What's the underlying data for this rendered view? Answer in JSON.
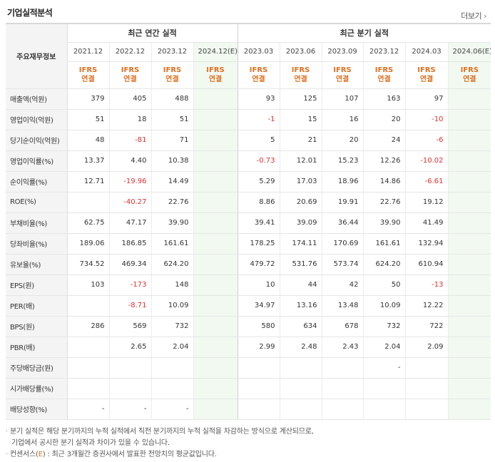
{
  "header": {
    "title": "기업실적분석",
    "more_label": "더보기"
  },
  "groups": {
    "annual": "최근 연간 실적",
    "quarterly": "최근 분기 실적"
  },
  "row_header": "주요재무정보",
  "periods": [
    "2021.12",
    "2022.12",
    "2023.12",
    "2024.12(E)",
    "2023.03",
    "2023.06",
    "2023.09",
    "2023.12",
    "2024.03",
    "2024.06(E)"
  ],
  "ifrs": {
    "top": "IFRS",
    "bottom": "연결"
  },
  "rows": [
    {
      "label": "매출액(억원)",
      "values": [
        "379",
        "405",
        "488",
        "",
        "93",
        "125",
        "107",
        "163",
        "97",
        ""
      ]
    },
    {
      "label": "영업이익(억원)",
      "values": [
        "51",
        "18",
        "51",
        "",
        "-1",
        "15",
        "16",
        "20",
        "-10",
        ""
      ]
    },
    {
      "label": "당기순이익(억원)",
      "values": [
        "48",
        "-81",
        "71",
        "",
        "5",
        "21",
        "20",
        "24",
        "-6",
        ""
      ]
    },
    {
      "label": "영업이익률(%)",
      "values": [
        "13.37",
        "4.40",
        "10.38",
        "",
        "-0.73",
        "12.01",
        "15.23",
        "12.26",
        "-10.02",
        ""
      ]
    },
    {
      "label": "순이익률(%)",
      "values": [
        "12.71",
        "-19.96",
        "14.49",
        "",
        "5.29",
        "17.03",
        "18.96",
        "14.86",
        "-6.61",
        ""
      ]
    },
    {
      "label": "ROE(%)",
      "values": [
        "",
        "-40.27",
        "22.76",
        "",
        "8.86",
        "20.69",
        "19.91",
        "22.76",
        "19.12",
        ""
      ]
    },
    {
      "label": "부채비율(%)",
      "values": [
        "62.75",
        "47.17",
        "39.90",
        "",
        "39.41",
        "39.09",
        "36.44",
        "39.90",
        "41.49",
        ""
      ]
    },
    {
      "label": "당좌비율(%)",
      "values": [
        "189.06",
        "186.85",
        "161.61",
        "",
        "178.25",
        "174.11",
        "170.69",
        "161.61",
        "132.94",
        ""
      ]
    },
    {
      "label": "유보율(%)",
      "values": [
        "734.52",
        "469.34",
        "624.20",
        "",
        "479.72",
        "531.76",
        "573.74",
        "624.20",
        "610.94",
        ""
      ]
    },
    {
      "label": "EPS(원)",
      "values": [
        "103",
        "-173",
        "148",
        "",
        "10",
        "44",
        "42",
        "50",
        "-13",
        ""
      ]
    },
    {
      "label": "PER(배)",
      "values": [
        "",
        "-8.71",
        "10.09",
        "",
        "34.97",
        "13.16",
        "13.48",
        "10.09",
        "12.22",
        ""
      ]
    },
    {
      "label": "BPS(원)",
      "values": [
        "286",
        "569",
        "732",
        "",
        "580",
        "634",
        "678",
        "732",
        "722",
        ""
      ]
    },
    {
      "label": "PBR(배)",
      "values": [
        "",
        "2.65",
        "2.04",
        "",
        "2.99",
        "2.48",
        "2.43",
        "2.04",
        "2.09",
        ""
      ]
    },
    {
      "label": "주당배당금(원)",
      "values": [
        "",
        "",
        "",
        "",
        "",
        "",
        "",
        "-",
        "",
        ""
      ]
    },
    {
      "label": "시가배당률(%)",
      "values": [
        "",
        "",
        "",
        "",
        "",
        "",
        "",
        "",
        "",
        ""
      ]
    },
    {
      "label": "배당성향(%)",
      "values": [
        "-",
        "-",
        "-",
        "",
        "",
        "",
        "",
        "",
        "",
        ""
      ]
    }
  ],
  "footnotes": {
    "line1": "분기 실적은 해당 분기까지의 누적 실적에서 직전 분기까지의 누적 실적을 차감하는 방식으로 계산되므로,",
    "line2": "기업에서 공시한 분기 실적과 차이가 있을 수 있습니다.",
    "line3_prefix": "컨센서스(",
    "line3_mark": "E",
    "line3_suffix": ") : 최근 3개월간 증권사에서 발표한 전망치의 평균값입니다."
  },
  "colors": {
    "accent": "#e07020",
    "negative": "#e03030",
    "estimate_bg": "#f1f9f1",
    "label_bg": "#f4f4f4"
  }
}
